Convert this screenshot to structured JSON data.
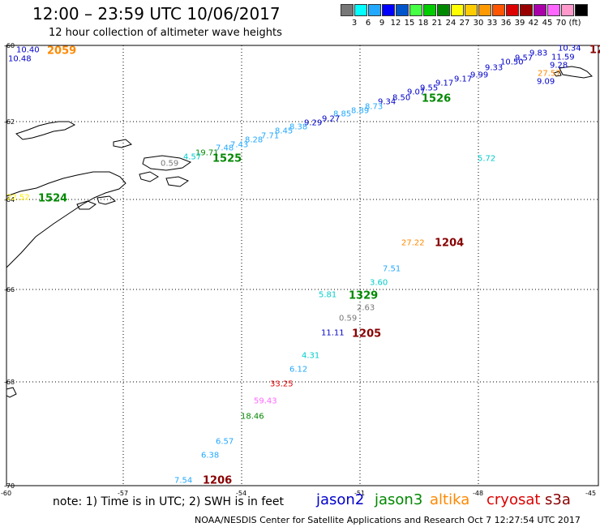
{
  "title": "12:00 – 23:59 UTC 10/06/2017",
  "subtitle": "12 hour collection of altimeter wave heights",
  "note": "note:  1) Time is in UTC;  2) SWH is in feet",
  "credit": "NOAA/NESDIS Center for Satellite Applications and Research    Oct  7 12:27:54 UTC 2017",
  "satellites": [
    {
      "name": "jason2",
      "color": "#0000cc"
    },
    {
      "name": "jason3",
      "color": "#008800"
    },
    {
      "name": "altika",
      "color": "#ff8800"
    },
    {
      "name": "cryosat",
      "color": "#dd0000"
    },
    {
      "name": "s3a",
      "color": "#880000"
    }
  ],
  "legend": {
    "colors": [
      "#777777",
      "#00ffff",
      "#22a8ff",
      "#0000ff",
      "#0055cc",
      "#44ff44",
      "#00cc00",
      "#008800",
      "#ffff00",
      "#ffcc00",
      "#ff9900",
      "#ff5500",
      "#dd0000",
      "#990000",
      "#aa00aa",
      "#ff66ff",
      "#ff99cc",
      "#000000"
    ],
    "labels": [
      "3",
      "6",
      "9",
      "12",
      "15",
      "18",
      "21",
      "24",
      "27",
      "30",
      "33",
      "36",
      "39",
      "42",
      "45",
      "70",
      "(ft)"
    ]
  },
  "lat_labels": [
    "-60",
    "-62",
    "-64",
    "-66",
    "-68",
    "-70"
  ],
  "lon_labels": [
    "-60",
    "-57",
    "-54",
    "-51",
    "-48",
    "-45"
  ],
  "observations": [
    {
      "text": "10.40",
      "color": "#0000cc"
    },
    {
      "text": "10.48",
      "color": "#0000cc"
    },
    {
      "text": "2059",
      "color": "#ff8800"
    },
    {
      "text": "12",
      "color": "#880000"
    },
    {
      "text": "10.34",
      "color": "#0000cc"
    },
    {
      "text": "9.83",
      "color": "#0000cc"
    },
    {
      "text": "11.59",
      "color": "#0000cc"
    },
    {
      "text": "9.57",
      "color": "#0000cc"
    },
    {
      "text": "10.50",
      "color": "#0000cc"
    },
    {
      "text": "9.28",
      "color": "#0000cc"
    },
    {
      "text": "9.33",
      "color": "#0000cc"
    },
    {
      "text": "27.57",
      "color": "#ff8800"
    },
    {
      "text": "9.09",
      "color": "#0000cc"
    },
    {
      "text": "9.99",
      "color": "#0000cc"
    },
    {
      "text": "9.17",
      "color": "#0000cc"
    },
    {
      "text": "9.17",
      "color": "#0000cc"
    },
    {
      "text": "9.55",
      "color": "#0000cc"
    },
    {
      "text": "9.07",
      "color": "#0000cc"
    },
    {
      "text": "1526",
      "color": "#008800"
    },
    {
      "text": "8.50",
      "color": "#0000cc"
    },
    {
      "text": "9.34",
      "color": "#0000cc"
    },
    {
      "text": "8.73",
      "color": "#22a8ff"
    },
    {
      "text": "8.89",
      "color": "#22a8ff"
    },
    {
      "text": "8.85",
      "color": "#22a8ff"
    },
    {
      "text": "9.27",
      "color": "#0000cc"
    },
    {
      "text": "9.29",
      "color": "#0000cc"
    },
    {
      "text": "8.38",
      "color": "#22a8ff"
    },
    {
      "text": "8.45",
      "color": "#22a8ff"
    },
    {
      "text": "7.71",
      "color": "#22a8ff"
    },
    {
      "text": "8.28",
      "color": "#22a8ff"
    },
    {
      "text": "7.43",
      "color": "#22a8ff"
    },
    {
      "text": "7.48",
      "color": "#22a8ff"
    },
    {
      "text": "19.71",
      "color": "#008800"
    },
    {
      "text": "1525",
      "color": "#008800"
    },
    {
      "text": "4.57",
      "color": "#00cccc"
    },
    {
      "text": "0.59",
      "color": "#777777"
    },
    {
      "text": "5.72",
      "color": "#00cccc"
    },
    {
      "text": "22.52",
      "color": "#ffee00"
    },
    {
      "text": "1524",
      "color": "#008800"
    },
    {
      "text": "27.22",
      "color": "#ff8800"
    },
    {
      "text": "1204",
      "color": "#880000"
    },
    {
      "text": "7.51",
      "color": "#22a8ff"
    },
    {
      "text": "3.60",
      "color": "#00cccc"
    },
    {
      "text": "5.81",
      "color": "#00cccc"
    },
    {
      "text": "1329",
      "color": "#008800"
    },
    {
      "text": "2.63",
      "color": "#777777"
    },
    {
      "text": "0.59",
      "color": "#777777"
    },
    {
      "text": "11.11",
      "color": "#0000cc"
    },
    {
      "text": "1205",
      "color": "#880000"
    },
    {
      "text": "4.31",
      "color": "#00cccc"
    },
    {
      "text": "6.12",
      "color": "#22a8ff"
    },
    {
      "text": "33.25",
      "color": "#dd0000"
    },
    {
      "text": "59.43",
      "color": "#ff66ff"
    },
    {
      "text": "18.46",
      "color": "#008800"
    },
    {
      "text": "6.57",
      "color": "#22a8ff"
    },
    {
      "text": "6.38",
      "color": "#22a8ff"
    },
    {
      "text": "7.54",
      "color": "#22a8ff"
    },
    {
      "text": "1206",
      "color": "#880000"
    }
  ]
}
